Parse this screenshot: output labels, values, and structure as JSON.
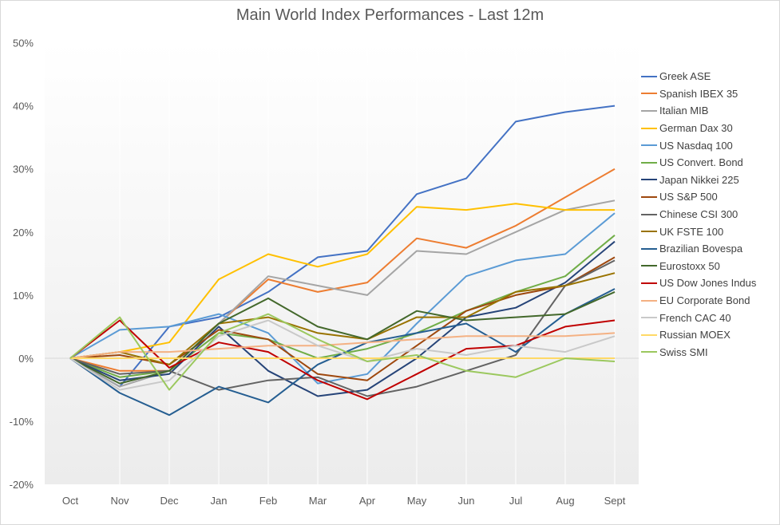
{
  "chart_data": {
    "type": "line",
    "title": "Main World Index Performances - Last 12m",
    "categories": [
      "Oct",
      "Nov",
      "Dec",
      "Jan",
      "Feb",
      "Mar",
      "Apr",
      "May",
      "Jun",
      "Jul",
      "Aug",
      "Sept"
    ],
    "y_ticks": [
      "-20%",
      "-10%",
      "0%",
      "10%",
      "20%",
      "30%",
      "40%",
      "50%"
    ],
    "ylim": [
      -20,
      50
    ],
    "legend_position": "right",
    "series": [
      {
        "name": "Greek ASE",
        "color": "#4472C4",
        "values": [
          0,
          -4.5,
          5,
          6.5,
          10.5,
          16,
          17,
          26,
          28.5,
          37.5,
          39,
          40
        ]
      },
      {
        "name": "Spanish IBEX 35",
        "color": "#ED7D31",
        "values": [
          0,
          -2,
          -2,
          5.5,
          12.5,
          10.5,
          12,
          19,
          17.5,
          21,
          25.5,
          30
        ]
      },
      {
        "name": "Italian MIB",
        "color": "#A5A5A5",
        "values": [
          0,
          -4.5,
          -2,
          5.5,
          13,
          11.5,
          10,
          17,
          16.5,
          20,
          23.5,
          25
        ]
      },
      {
        "name": "German Dax 30",
        "color": "#FFC000",
        "values": [
          0,
          1,
          2.5,
          12.5,
          16.5,
          14.5,
          16.5,
          24,
          23.5,
          24.5,
          23.5,
          23.5
        ]
      },
      {
        "name": "US Nasdaq 100",
        "color": "#5B9BD5",
        "values": [
          0,
          4.5,
          5,
          7,
          4,
          -4,
          -2.5,
          5.5,
          13,
          15.5,
          16.5,
          23
        ]
      },
      {
        "name": "US Convert. Bond",
        "color": "#70AD47",
        "values": [
          0,
          -3,
          -2,
          4,
          3,
          0,
          1.5,
          4,
          7.5,
          10.5,
          13,
          19.5
        ]
      },
      {
        "name": "Japan Nikkei 225",
        "color": "#264478",
        "values": [
          0,
          -3.5,
          -2.5,
          5,
          -2,
          -6,
          -5,
          0,
          6.5,
          8,
          12,
          18.5
        ]
      },
      {
        "name": "US S&P 500",
        "color": "#9E480E",
        "values": [
          0,
          0.5,
          -1,
          4.5,
          3,
          -2.5,
          -3.5,
          2,
          7.5,
          10,
          11.5,
          16
        ]
      },
      {
        "name": "Chinese CSI 300",
        "color": "#636363",
        "values": [
          0,
          -2.5,
          -2,
          -5,
          -3.5,
          -3,
          -6,
          -4.5,
          -2,
          0.5,
          11.5,
          15.5
        ]
      },
      {
        "name": "UK FSTE 100",
        "color": "#997300",
        "values": [
          0,
          1,
          -1,
          5.5,
          6.5,
          4,
          3,
          6.5,
          6.5,
          10.5,
          11.5,
          13.5
        ]
      },
      {
        "name": "Brazilian Bovespa",
        "color": "#255E91",
        "values": [
          0,
          -5.5,
          -9,
          -4.5,
          -7,
          -1,
          2.5,
          4,
          5.5,
          1,
          7,
          11
        ]
      },
      {
        "name": "Eurostoxx 50",
        "color": "#43682B",
        "values": [
          0,
          -4,
          -2,
          5.5,
          9.5,
          5,
          3,
          7.5,
          6,
          6.5,
          7,
          10.5
        ]
      },
      {
        "name": "US Dow Jones Indus",
        "color": "#C00000",
        "values": [
          0,
          6,
          -1.5,
          2.5,
          1,
          -3.5,
          -6.5,
          -2.5,
          1.5,
          2,
          5,
          6
        ]
      },
      {
        "name": "EU Corporate Bond",
        "color": "#F4B183",
        "values": [
          0,
          1,
          1,
          1.5,
          2,
          2,
          2.5,
          3,
          3.5,
          3.5,
          3.5,
          4
        ]
      },
      {
        "name": "French CAC 40",
        "color": "#C9C9C9",
        "values": [
          0,
          -5,
          -3.5,
          3.5,
          6,
          2,
          -0.5,
          1.5,
          0.5,
          2,
          1,
          3.5
        ]
      },
      {
        "name": "Russian MOEX",
        "color": "#FFD966",
        "values": [
          0,
          0,
          0,
          0,
          0,
          0,
          0,
          0,
          0,
          0,
          0,
          0
        ]
      },
      {
        "name": "Swiss SMI",
        "color": "#9BC85E",
        "values": [
          0,
          6.5,
          -5,
          4,
          7,
          3,
          -0.5,
          0.5,
          -2,
          -3,
          0,
          -0.5
        ]
      }
    ]
  }
}
